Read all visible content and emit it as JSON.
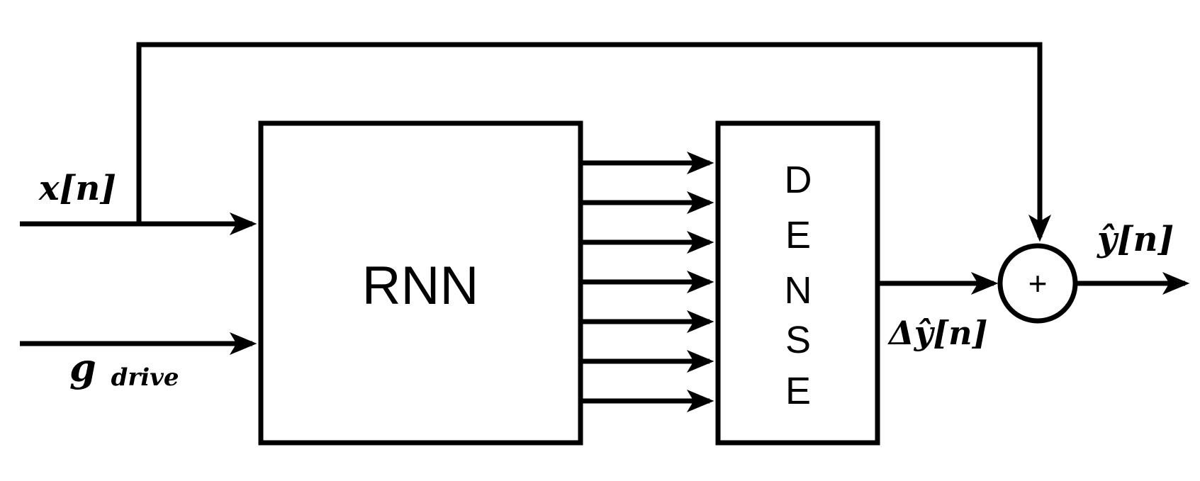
{
  "blocks": {
    "rnn_label": "RNN",
    "dense_letters": [
      "D",
      "E",
      "N",
      "S",
      "E"
    ],
    "sum_symbol": "+"
  },
  "signals": {
    "input_x": "x[n]",
    "input_g_base": "g",
    "input_g_sub": "drive",
    "residual_delta": "Δŷ[n]",
    "output_y": "ŷ[n]"
  },
  "rnn_output_arrow_count": 7,
  "colors": {
    "stroke": "#000000",
    "background": "#ffffff"
  }
}
